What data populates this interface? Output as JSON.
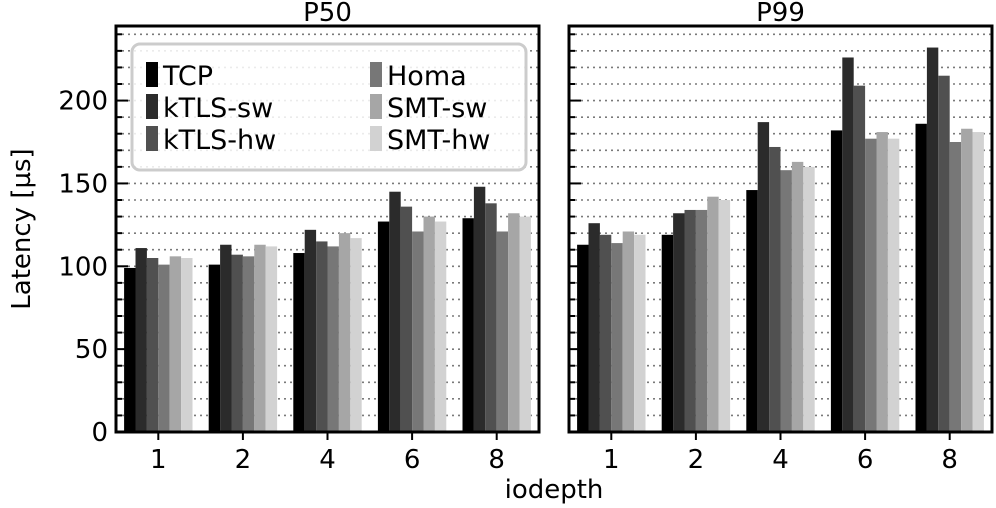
{
  "chart_data": {
    "type": "bar",
    "xlabel": "iodepth",
    "ylabel": "Latency [µs]",
    "categories": [
      "1",
      "2",
      "4",
      "6",
      "8"
    ],
    "ylim": [
      0,
      245
    ],
    "yticks": [
      0,
      50,
      100,
      150,
      200
    ],
    "grid": true,
    "legend_position": "top-left of first panel",
    "series_colors": {
      "TCP": "#000000",
      "kTLS-sw": "#2b2b2b",
      "kTLS-hw": "#505050",
      "Homa": "#777777",
      "SMT-sw": "#a6a6a6",
      "SMT-hw": "#d2d2d2"
    },
    "legend": [
      "TCP",
      "kTLS-sw",
      "kTLS-hw",
      "Homa",
      "SMT-sw",
      "SMT-hw"
    ],
    "panels": [
      {
        "title": "P50",
        "series": [
          {
            "name": "TCP",
            "values": [
              99,
              101,
              108,
              127,
              129
            ]
          },
          {
            "name": "kTLS-sw",
            "values": [
              111,
              113,
              122,
              145,
              148
            ]
          },
          {
            "name": "kTLS-hw",
            "values": [
              105,
              107,
              115,
              136,
              138
            ]
          },
          {
            "name": "Homa",
            "values": [
              101,
              106,
              112,
              121,
              121
            ]
          },
          {
            "name": "SMT-sw",
            "values": [
              106,
              113,
              120,
              130,
              132
            ]
          },
          {
            "name": "SMT-hw",
            "values": [
              105,
              112,
              117,
              127,
              130
            ]
          }
        ]
      },
      {
        "title": "P99",
        "series": [
          {
            "name": "TCP",
            "values": [
              113,
              119,
              146,
              182,
              186
            ]
          },
          {
            "name": "kTLS-sw",
            "values": [
              126,
              132,
              187,
              226,
              232
            ]
          },
          {
            "name": "kTLS-hw",
            "values": [
              119,
              134,
              172,
              209,
              215
            ]
          },
          {
            "name": "Homa",
            "values": [
              114,
              134,
              158,
              177,
              175
            ]
          },
          {
            "name": "SMT-sw",
            "values": [
              121,
              142,
              163,
              181,
              183
            ]
          },
          {
            "name": "SMT-hw",
            "values": [
              119,
              140,
              160,
              177,
              181
            ]
          }
        ]
      }
    ]
  }
}
